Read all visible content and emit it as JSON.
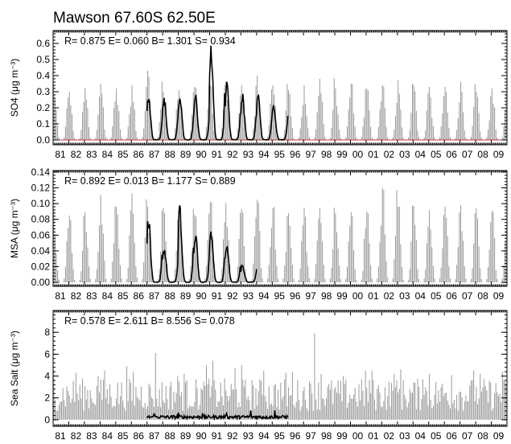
{
  "title": "Mawson 67.60S 62.50E",
  "x_tick_labels": [
    "81",
    "82",
    "83",
    "84",
    "85",
    "86",
    "87",
    "88",
    "89",
    "90",
    "91",
    "92",
    "93",
    "94",
    "95",
    "96",
    "97",
    "98",
    "99",
    "00",
    "01",
    "02",
    "03",
    "04",
    "05",
    "06",
    "07",
    "08",
    "09"
  ],
  "colors": {
    "model_bars": "#9a9a9a",
    "observed_line": "#000000",
    "zero_line": "#cc3333",
    "axes": "#000000"
  },
  "chart_data": [
    {
      "type": "bar",
      "ylabel": "SO4 (μg m⁻³)",
      "ylim": [
        -0.03,
        0.68
      ],
      "yticks": [
        "0.0",
        "0.1",
        "0.2",
        "0.3",
        "0.4",
        "0.5",
        "0.6"
      ],
      "stats": "R= 0.875 E= 0.060 B= 1.301 S= 0.934",
      "x_range_years": [
        1981,
        2010
      ],
      "series": [
        {
          "kind": "bars-monthly",
          "annual_peaks": [
            0.34,
            0.3,
            0.32,
            0.35,
            0.32,
            0.34,
            0.43,
            0.3,
            0.31,
            0.33,
            0.34,
            0.36,
            0.34,
            0.4,
            0.34,
            0.31,
            0.34,
            0.38,
            0.32,
            0.35,
            0.32,
            0.34,
            0.37,
            0.34,
            0.33,
            0.33,
            0.36,
            0.3,
            0.32
          ],
          "austral_summer_peak": true
        },
        {
          "kind": "observed-line",
          "years": [
            1987,
            1996
          ],
          "annual_peaks": [
            0.27,
            0.25,
            0.28,
            0.27,
            0.55,
            0.33,
            0.27,
            0.26,
            0.22
          ]
        }
      ]
    },
    {
      "type": "bar",
      "ylabel": "MSA (μg m⁻³)",
      "ylim": [
        -0.005,
        0.142
      ],
      "yticks": [
        "0.00",
        "0.02",
        "0.04",
        "0.06",
        "0.08",
        "0.10",
        "0.12",
        "0.14"
      ],
      "stats": "R= 0.892 E= 0.013 B= 1.177 S= 0.889",
      "x_range_years": [
        1981,
        2010
      ],
      "series": [
        {
          "kind": "bars-monthly",
          "annual_peaks": [
            0.093,
            0.085,
            0.089,
            0.111,
            0.096,
            0.113,
            0.096,
            0.094,
            0.095,
            0.086,
            0.102,
            0.101,
            0.093,
            0.105,
            0.094,
            0.088,
            0.095,
            0.094,
            0.088,
            0.089,
            0.09,
            0.12,
            0.096,
            0.097,
            0.092,
            0.096,
            0.098,
            0.094,
            0.091
          ],
          "austral_summer_peak": true
        },
        {
          "kind": "observed-line",
          "years": [
            1987,
            1994
          ],
          "annual_peaks": [
            0.08,
            0.042,
            0.093,
            0.06,
            0.065,
            0.043,
            0.022
          ]
        }
      ]
    },
    {
      "type": "bar",
      "ylabel": "Sea Salt (μg m⁻³)",
      "ylim": [
        -0.6,
        10
      ],
      "yticks": [
        "0",
        "2",
        "4",
        "6",
        "8"
      ],
      "stats": "R= 0.578 E= 2.611 B= 8.556 S= 0.078",
      "x_range_years": [
        1981,
        2010
      ],
      "series": [
        {
          "kind": "bars-monthly",
          "annual_peaks": [
            4.5,
            4.3,
            4.0,
            4.5,
            4.9,
            4.4,
            6.1,
            4.0,
            4.2,
            5.0,
            5.4,
            4.7,
            5.0,
            4.5,
            4.3,
            4.4,
            7.9,
            4.2,
            4.0,
            4.5,
            4.5,
            4.2,
            4.6,
            3.7,
            4.2,
            4.1,
            4.5,
            4.2,
            4.4
          ],
          "typical_level": 2.3
        },
        {
          "kind": "observed-line",
          "years": [
            1987,
            1996
          ],
          "mean_level": 0.25,
          "peak": 0.9
        }
      ]
    }
  ]
}
